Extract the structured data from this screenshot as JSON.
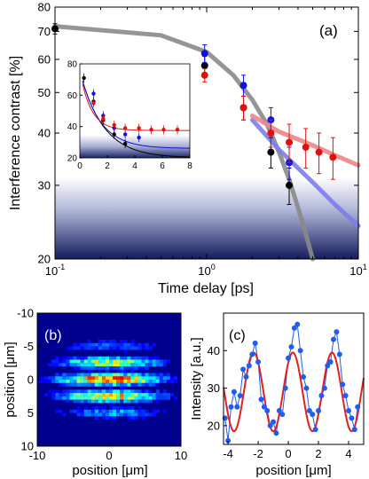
{
  "chart_data": [
    {
      "panel": "(a)",
      "type": "scatter",
      "xlabel": "Time delay [ps]",
      "ylabel": "Interference contrast [%]",
      "xscale": "log",
      "yscale": "log",
      "xlim": [
        0.1,
        10
      ],
      "ylim": [
        20,
        80
      ],
      "x_ticks": [
        "10^-1",
        "10^0",
        "10^1"
      ],
      "y_ticks": [
        "20",
        "30",
        "40",
        "50",
        "60",
        "70",
        "80"
      ],
      "series": [
        {
          "color": "#000000",
          "x": [
            0.1,
            0.97,
            1.75,
            2.65,
            3.5
          ],
          "y": [
            71,
            58,
            46,
            36,
            30
          ],
          "err": [
            2,
            3,
            3,
            3,
            3
          ]
        },
        {
          "color": "#1010e0",
          "x": [
            0.97,
            1.75,
            2.65,
            3.5
          ],
          "y": [
            62,
            52,
            43,
            34
          ],
          "err": [
            3,
            3,
            3,
            3
          ]
        },
        {
          "color": "#e01010",
          "x": [
            0.97,
            1.75,
            2.65,
            3.5,
            4.5,
            5.5,
            6.8
          ],
          "y": [
            55,
            46,
            40,
            38,
            37,
            36,
            35
          ],
          "err": [
            2,
            3,
            3,
            4,
            4,
            4,
            4
          ]
        }
      ],
      "fits": [
        {
          "color": "#8a8a8a",
          "x": [
            0.1,
            0.5,
            1,
            1.5,
            2,
            2.5,
            3,
            3.5,
            4,
            4.5,
            5
          ],
          "y": [
            72,
            68.5,
            62.5,
            55,
            48,
            42,
            36,
            31,
            26.5,
            23,
            20
          ]
        },
        {
          "color": "#7d7dea",
          "x": [
            2,
            3,
            5,
            7,
            10
          ],
          "y": [
            43,
            36.5,
            30.5,
            27,
            24
          ]
        },
        {
          "color": "#ec8585",
          "x": [
            2,
            3,
            5,
            7,
            10
          ],
          "y": [
            44,
            40.3,
            37.4,
            35.4,
            33.5
          ]
        }
      ],
      "annotation": "(a)",
      "shading": "white-to-navy gradient below ~30%",
      "inset": {
        "type": "scatter",
        "xlim": [
          0,
          8
        ],
        "ylim": [
          20,
          80
        ],
        "x_ticks": [
          "0",
          "2",
          "4",
          "6",
          "8"
        ],
        "y_ticks": [
          "20",
          "40",
          "60",
          "80"
        ],
        "series": [
          {
            "color": "#000000",
            "x": [
              0.3,
              1,
              1.7,
              2.5,
              3.3
            ],
            "y": [
              71,
              56,
              44,
              35,
              29
            ]
          },
          {
            "color": "#1010e0",
            "x": [
              1,
              1.7,
              2.5,
              3.3,
              4.3
            ],
            "y": [
              61,
              47,
              39,
              35,
              33
            ]
          },
          {
            "color": "#e01010",
            "x": [
              1,
              1.7,
              2.5,
              3.3,
              4.3,
              5.2,
              6.1,
              7.1
            ],
            "y": [
              55,
              45,
              41,
              39,
              39,
              38,
              38,
              38
            ]
          }
        ]
      }
    },
    {
      "panel": "(b)",
      "type": "heatmap",
      "xlabel": "position [μm]",
      "ylabel": "position [μm]",
      "xlim": [
        -10,
        10
      ],
      "ylim": [
        -10,
        10
      ],
      "x_ticks": [
        "-10",
        "0",
        "10"
      ],
      "y_ticks": [
        "-10",
        "-5",
        "0",
        "5",
        "10"
      ],
      "annotation": "(b)"
    },
    {
      "panel": "(c)",
      "type": "line",
      "xlabel": "position [μm]",
      "ylabel": "Intensity [a.u.]",
      "xlim": [
        -4.3,
        5
      ],
      "ylim": [
        15,
        50
      ],
      "x_ticks": [
        "-4",
        "-2",
        "0",
        "2",
        "4"
      ],
      "y_ticks": [
        "20",
        "30",
        "40"
      ],
      "annotation": "(c)",
      "series": [
        {
          "color": "#1f5cf0",
          "x": [
            -4.2,
            -4.0,
            -3.8,
            -3.6,
            -3.4,
            -3.2,
            -3.0,
            -2.8,
            -2.6,
            -2.4,
            -2.2,
            -2.0,
            -1.8,
            -1.6,
            -1.4,
            -1.2,
            -1.0,
            -0.8,
            -0.6,
            -0.4,
            -0.2,
            0.0,
            0.2,
            0.4,
            0.6,
            0.8,
            1.0,
            1.2,
            1.4,
            1.6,
            1.8,
            2.0,
            2.2,
            2.4,
            2.6,
            2.8,
            3.0,
            3.2,
            3.4,
            3.6,
            3.8,
            4.0,
            4.2,
            4.4,
            4.6
          ],
          "y": [
            22,
            16,
            25,
            29,
            25,
            28,
            35,
            33,
            36,
            39,
            42,
            37,
            27,
            25,
            24,
            20,
            21,
            18,
            24,
            23,
            30,
            38,
            41,
            46,
            47,
            40,
            33,
            30,
            24,
            23,
            19,
            24,
            28,
            30,
            36,
            37,
            43,
            45,
            39,
            31,
            28,
            24,
            22,
            19,
            25
          ]
        }
      ],
      "fit": {
        "color": "#e02020",
        "model": "sinusoid",
        "mean": 29,
        "amplitude": 10.5,
        "period_um": 2.6,
        "phase_um": 0.3
      }
    }
  ]
}
